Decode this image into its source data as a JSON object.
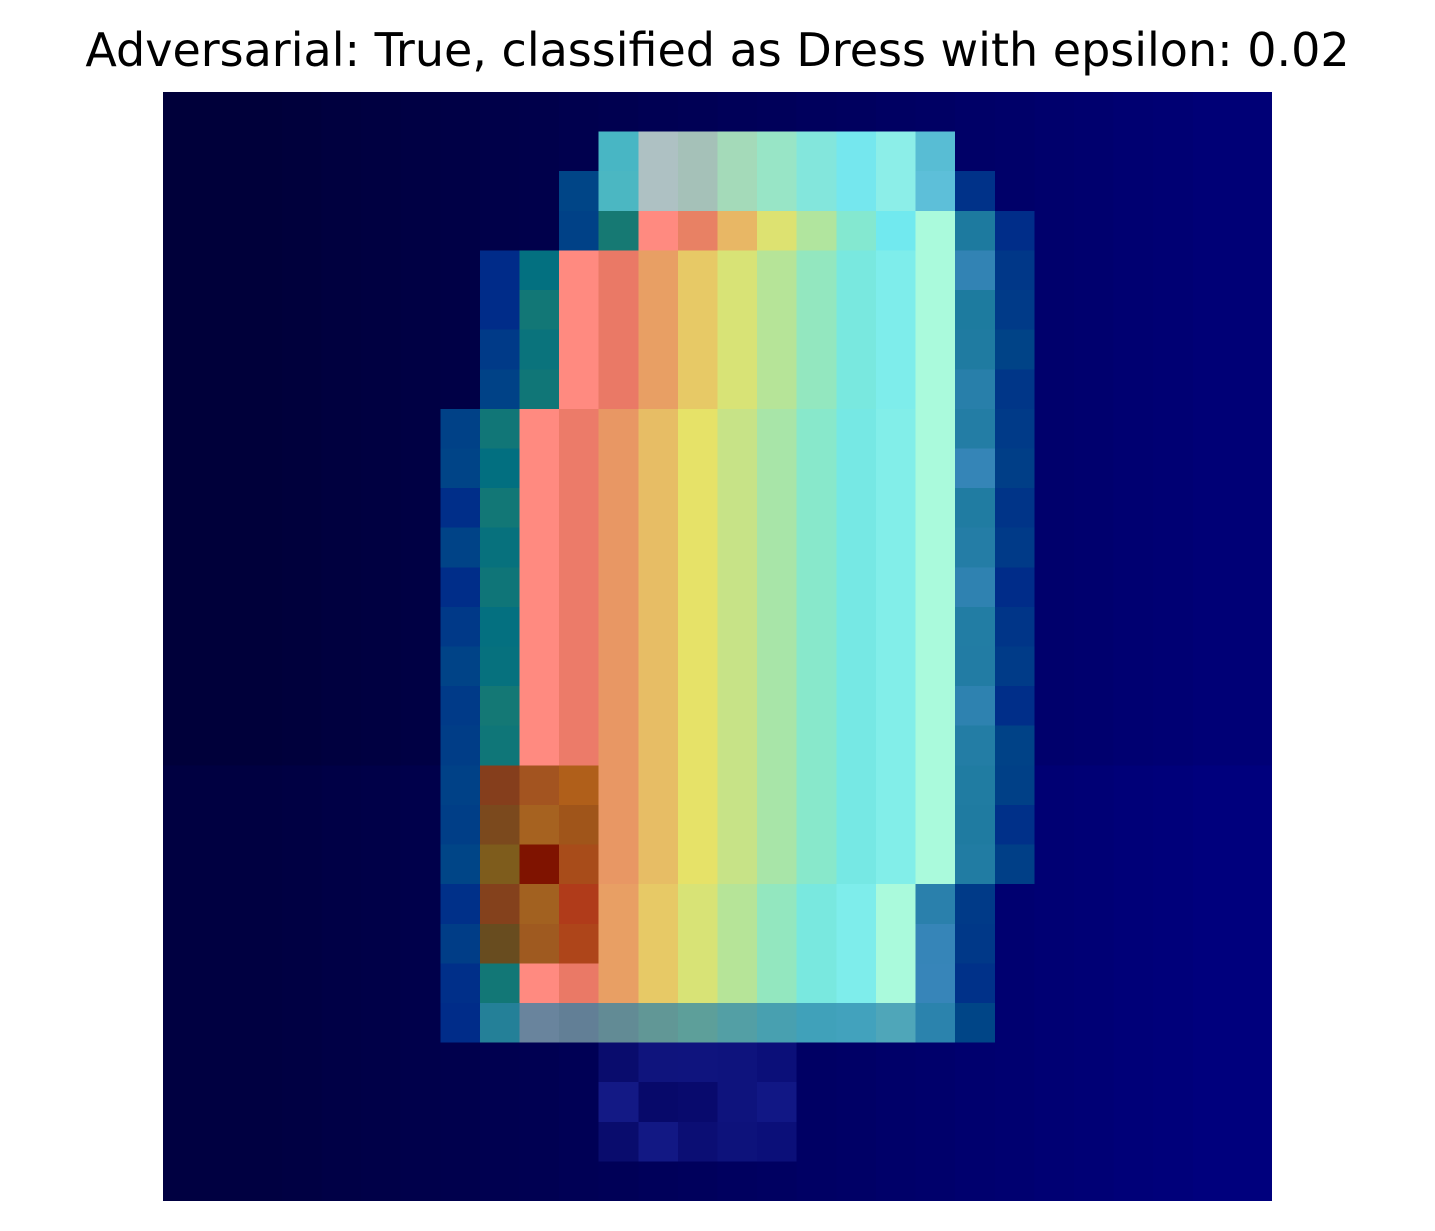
{
  "title": "Adversarial: True, classified as Dress with epsilon: 0.02",
  "image": {
    "type": "heatmap-overlay",
    "colormap": "jet",
    "grid": "28x28",
    "axes_visible": false,
    "subject": "Dress",
    "colors": {
      "background": "#ffffff",
      "dark_navy": "#00003a",
      "navy": "#000080",
      "cyan": "#7df5ee",
      "yellow": "#e6e864",
      "salmon": "#ff8a80",
      "dark_red": "#7f1300"
    }
  }
}
